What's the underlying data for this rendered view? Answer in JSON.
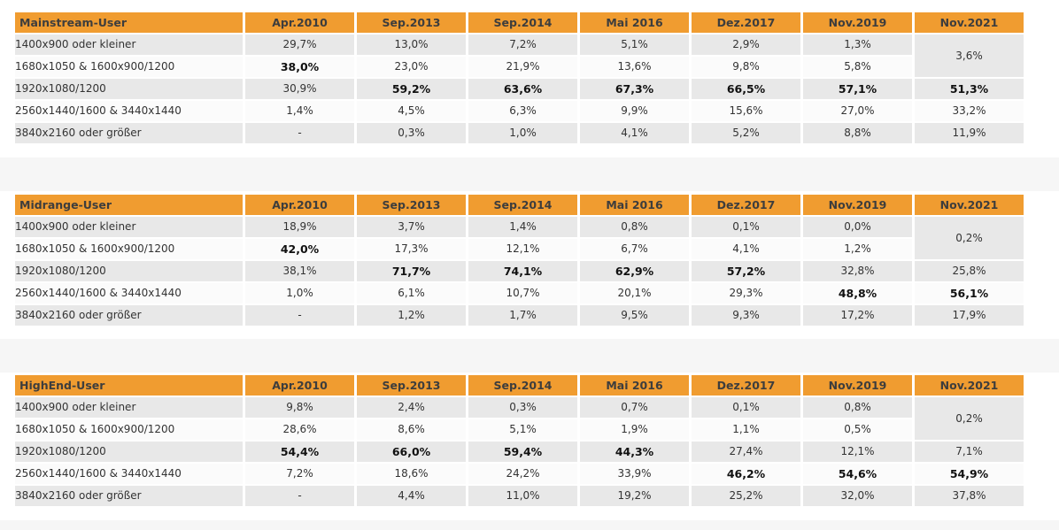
{
  "columns": [
    "Apr.2010",
    "Sep.2013",
    "Sep.2014",
    "Mai 2016",
    "Dez.2017",
    "Nov.2019",
    "Nov.2021"
  ],
  "row_labels": [
    "1400x900 oder kleiner",
    "1680x1050 & 1600x900/1200",
    "1920x1080/1200",
    "2560x1440/1600 & 3440x1440",
    "3840x2160 oder größer"
  ],
  "tables": [
    {
      "group": "Mainstream-User",
      "rows": [
        {
          "values": [
            "29,7%",
            "13,0%",
            "7,2%",
            "5,1%",
            "2,9%",
            "1,3%"
          ],
          "bold": []
        },
        {
          "values": [
            "38,0%",
            "23,0%",
            "21,9%",
            "13,6%",
            "9,8%",
            "5,8%"
          ],
          "bold": [
            0
          ]
        },
        {
          "values": [
            "30,9%",
            "59,2%",
            "63,6%",
            "67,3%",
            "66,5%",
            "57,1%",
            "51,3%"
          ],
          "bold": [
            1,
            2,
            3,
            4,
            5,
            6
          ]
        },
        {
          "values": [
            "1,4%",
            "4,5%",
            "6,3%",
            "9,9%",
            "15,6%",
            "27,0%",
            "33,2%"
          ],
          "bold": []
        },
        {
          "values": [
            "-",
            "0,3%",
            "1,0%",
            "4,1%",
            "5,2%",
            "8,8%",
            "11,9%"
          ],
          "bold": []
        }
      ],
      "merged_last": "3,6%"
    },
    {
      "group": "Midrange-User",
      "rows": [
        {
          "values": [
            "18,9%",
            "3,7%",
            "1,4%",
            "0,8%",
            "0,1%",
            "0,0%"
          ],
          "bold": []
        },
        {
          "values": [
            "42,0%",
            "17,3%",
            "12,1%",
            "6,7%",
            "4,1%",
            "1,2%"
          ],
          "bold": [
            0
          ]
        },
        {
          "values": [
            "38,1%",
            "71,7%",
            "74,1%",
            "62,9%",
            "57,2%",
            "32,8%",
            "25,8%"
          ],
          "bold": [
            1,
            2,
            3,
            4
          ]
        },
        {
          "values": [
            "1,0%",
            "6,1%",
            "10,7%",
            "20,1%",
            "29,3%",
            "48,8%",
            "56,1%"
          ],
          "bold": [
            5,
            6
          ]
        },
        {
          "values": [
            "-",
            "1,2%",
            "1,7%",
            "9,5%",
            "9,3%",
            "17,2%",
            "17,9%"
          ],
          "bold": []
        }
      ],
      "merged_last": "0,2%"
    },
    {
      "group": "HighEnd-User",
      "rows": [
        {
          "values": [
            "9,8%",
            "2,4%",
            "0,3%",
            "0,7%",
            "0,1%",
            "0,8%"
          ],
          "bold": []
        },
        {
          "values": [
            "28,6%",
            "8,6%",
            "5,1%",
            "1,9%",
            "1,1%",
            "0,5%"
          ],
          "bold": []
        },
        {
          "values": [
            "54,4%",
            "66,0%",
            "59,4%",
            "44,3%",
            "27,4%",
            "12,1%",
            "7,1%"
          ],
          "bold": [
            0,
            1,
            2,
            3
          ]
        },
        {
          "values": [
            "7,2%",
            "18,6%",
            "24,2%",
            "33,9%",
            "46,2%",
            "54,6%",
            "54,9%"
          ],
          "bold": [
            4,
            5,
            6
          ]
        },
        {
          "values": [
            "-",
            "4,4%",
            "11,0%",
            "19,2%",
            "25,2%",
            "32,0%",
            "37,8%"
          ],
          "bold": []
        }
      ],
      "merged_last": "0,2%"
    }
  ]
}
